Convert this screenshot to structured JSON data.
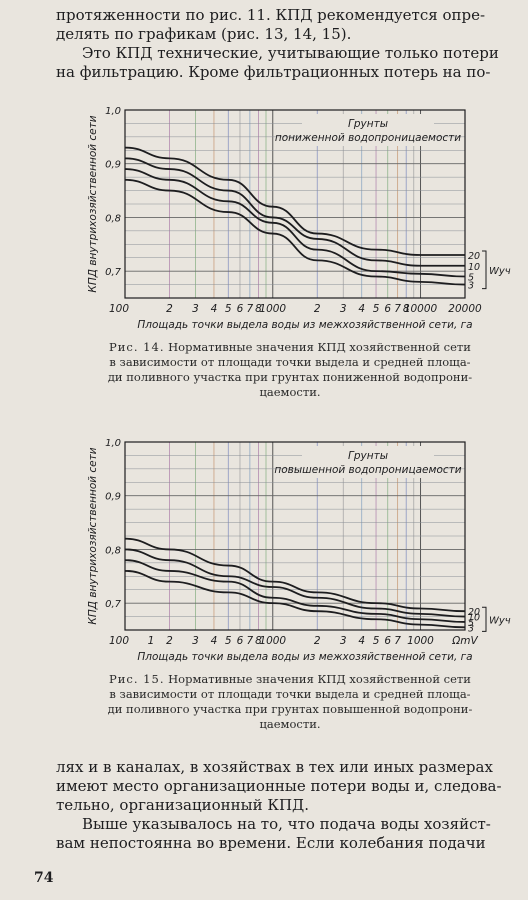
{
  "text_top": [
    "протяженности по рис. 11. КПД рекомендуется опре-",
    "делять по графикам (рис. 13, 14, 15).",
    "Это КПД технические, учитывающие только потери",
    "на фильтрацию. Кроме фильтрационных потерь на по-"
  ],
  "text_bottom": [
    "лях и в каналах, в хозяйствах в тех или иных размерах",
    "имеют место организационные потери воды и, следова-",
    "тельно, организационный КПД.",
    "Выше указывалось на то, что подача воды хозяйст-",
    "вам непостоянна во времени. Если колебания подачи"
  ],
  "page_number": "74",
  "fig14_caption": {
    "label": "Рис. 14.",
    "lines": [
      "Нормативные значения КПД хозяйственной сети",
      "в зависимости от площади точки выдела и средней площа-",
      "ди поливного участка при грунтах пониженной водопрони-",
      "цаемости."
    ]
  },
  "fig15_caption": {
    "label": "Рис. 15.",
    "lines": [
      "Нормативные значения КПД хозяйственной сети",
      "в зависимости от площади точки выдела и средней площа-",
      "ди поливного участка при грунтах повышенной водопрони-",
      "цаемости."
    ]
  },
  "colors": {
    "ink": "#1d1d1f",
    "paper": "#e9e5de",
    "grid": "#8a8f96"
  },
  "chart_data": [
    {
      "type": "line",
      "figure": "Рис. 14",
      "title": "Грунты пониженной водопроницаемости",
      "xlabel": "Площадь точки выдела воды из межхозяйственной сети, га",
      "ylabel": "КПД внутрихозяйственной сети",
      "x_scale": "log",
      "xlim": [
        100,
        20000
      ],
      "ylim": [
        0.65,
        1.0
      ],
      "y_ticks": [
        "0,7",
        "0,8",
        "0,9",
        "1,0"
      ],
      "x_ticks": [
        "100",
        "2",
        "3",
        "4",
        "5",
        "6",
        "7",
        "8",
        "1000",
        "2",
        "3",
        "4",
        "5",
        "6",
        "7",
        "8",
        "10000",
        "20000"
      ],
      "legend_label": "Wуч",
      "series": [
        {
          "name": "20",
          "x": [
            100,
            200,
            500,
            1000,
            2000,
            5000,
            10000,
            20000
          ],
          "values": [
            0.93,
            0.91,
            0.87,
            0.82,
            0.77,
            0.74,
            0.73,
            0.73
          ]
        },
        {
          "name": "10",
          "x": [
            100,
            200,
            500,
            1000,
            2000,
            5000,
            10000,
            20000
          ],
          "values": [
            0.91,
            0.89,
            0.85,
            0.8,
            0.76,
            0.72,
            0.71,
            0.71
          ]
        },
        {
          "name": "5",
          "x": [
            100,
            200,
            500,
            1000,
            2000,
            5000,
            10000,
            20000
          ],
          "values": [
            0.89,
            0.87,
            0.83,
            0.79,
            0.74,
            0.7,
            0.695,
            0.69
          ]
        },
        {
          "name": "3",
          "x": [
            100,
            200,
            500,
            1000,
            2000,
            5000,
            10000,
            20000
          ],
          "values": [
            0.87,
            0.85,
            0.81,
            0.77,
            0.72,
            0.69,
            0.68,
            0.675
          ]
        }
      ]
    },
    {
      "type": "line",
      "figure": "Рис. 15",
      "title": "Грунты повышенной водопроницаемости",
      "xlabel": "Площадь точки выдела воды из межхозяйственной сети, га",
      "ylabel": "КПД внутрихозяйственной сети",
      "x_scale": "log",
      "xlim": [
        100,
        20000
      ],
      "ylim": [
        0.65,
        1.0
      ],
      "y_ticks": [
        "0,7",
        "0,8",
        "0,9",
        "1,0"
      ],
      "x_ticks": [
        "100",
        "1",
        "2",
        "3",
        "4",
        "5",
        "6",
        "7",
        "8",
        "1000",
        "2",
        "3",
        "4",
        "5",
        "6",
        "7",
        "1000",
        "ΩmV"
      ],
      "legend_label": "Wуч",
      "series": [
        {
          "name": "20",
          "x": [
            100,
            200,
            500,
            1000,
            2000,
            5000,
            10000,
            20000
          ],
          "values": [
            0.82,
            0.8,
            0.77,
            0.74,
            0.72,
            0.7,
            0.69,
            0.685
          ]
        },
        {
          "name": "10",
          "x": [
            100,
            200,
            500,
            1000,
            2000,
            5000,
            10000,
            20000
          ],
          "values": [
            0.8,
            0.78,
            0.75,
            0.73,
            0.71,
            0.69,
            0.68,
            0.675
          ]
        },
        {
          "name": "5",
          "x": [
            100,
            200,
            500,
            1000,
            2000,
            5000,
            10000,
            20000
          ],
          "values": [
            0.78,
            0.76,
            0.74,
            0.71,
            0.695,
            0.68,
            0.67,
            0.665
          ]
        },
        {
          "name": "3",
          "x": [
            100,
            200,
            500,
            1000,
            2000,
            5000,
            10000,
            20000
          ],
          "values": [
            0.76,
            0.74,
            0.72,
            0.7,
            0.685,
            0.67,
            0.66,
            0.655
          ]
        }
      ]
    }
  ]
}
